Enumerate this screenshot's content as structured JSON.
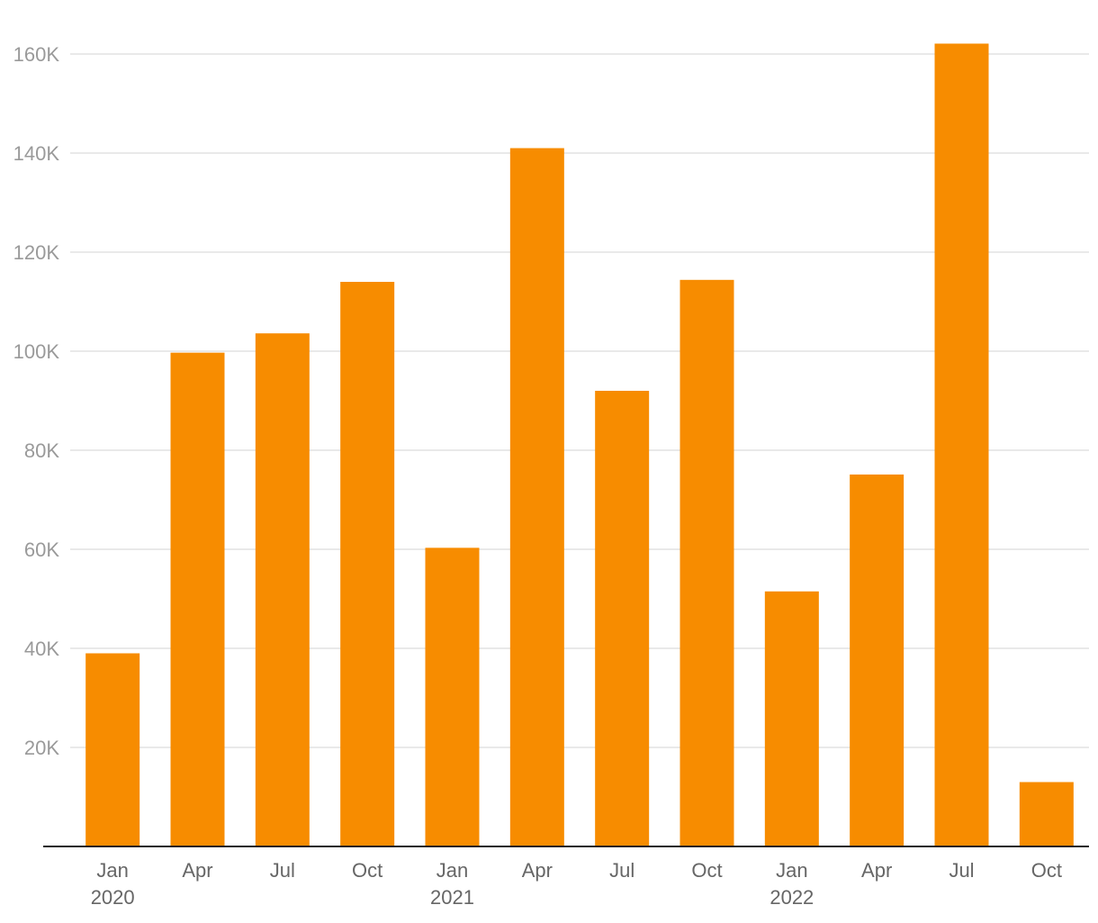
{
  "chart_data": {
    "type": "bar",
    "categories": [
      "Jan 2020",
      "Apr",
      "Jul",
      "Oct",
      "Jan 2021",
      "Apr",
      "Jul",
      "Oct",
      "Jan 2022",
      "Apr",
      "Jul",
      "Oct"
    ],
    "x_tick_labels": [
      [
        "Jan",
        "2020"
      ],
      [
        "Apr"
      ],
      [
        "Jul"
      ],
      [
        "Oct"
      ],
      [
        "Jan",
        "2021"
      ],
      [
        "Apr"
      ],
      [
        "Jul"
      ],
      [
        "Oct"
      ],
      [
        "Jan",
        "2022"
      ],
      [
        "Apr"
      ],
      [
        "Jul"
      ],
      [
        "Oct"
      ]
    ],
    "values": [
      39000,
      99700,
      103600,
      114000,
      60300,
      141000,
      92000,
      114400,
      51500,
      75100,
      162100,
      13000
    ],
    "ylim": [
      0,
      160000
    ],
    "y_ticks": [
      20000,
      40000,
      60000,
      80000,
      100000,
      120000,
      140000,
      160000
    ],
    "y_tick_labels": [
      "20K",
      "40K",
      "60K",
      "80K",
      "100K",
      "120K",
      "140K",
      "160K"
    ],
    "title": "",
    "xlabel": "",
    "ylabel": "",
    "grid": true,
    "bar_color": "#F78C00",
    "grid_color": "#e2e2e2",
    "axis_color": "#222222"
  }
}
